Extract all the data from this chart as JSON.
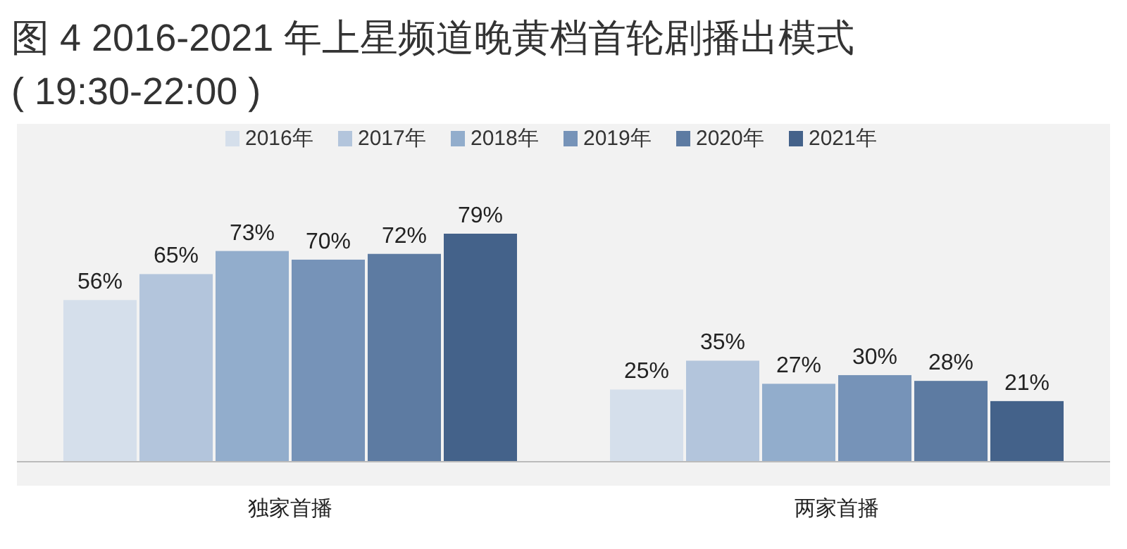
{
  "chart_data": {
    "type": "bar",
    "title": "图 4 2016-2021 年上星频道晚黄档首轮剧播出模式",
    "subtitle": "( 19:30-22:00 )",
    "categories": [
      "独家首播",
      "两家首播"
    ],
    "legend": "top",
    "series": [
      {
        "name": "2016年",
        "color": "#d5dfeb",
        "values": [
          56,
          25
        ],
        "value_labels": [
          "56%",
          "25%"
        ]
      },
      {
        "name": "2017年",
        "color": "#b3c5dc",
        "values": [
          65,
          35
        ],
        "value_labels": [
          "65%",
          "35%"
        ]
      },
      {
        "name": "2018年",
        "color": "#92adcc",
        "values": [
          73,
          27
        ],
        "value_labels": [
          "73%",
          "27%"
        ]
      },
      {
        "name": "2019年",
        "color": "#7693b8",
        "values": [
          70,
          30
        ],
        "value_labels": [
          "70%",
          "30%"
        ]
      },
      {
        "name": "2020年",
        "color": "#5d7ba2",
        "values": [
          72,
          28
        ],
        "value_labels": [
          "72%",
          "28%"
        ]
      },
      {
        "name": "2021年",
        "color": "#44628a",
        "values": [
          79,
          21
        ],
        "value_labels": [
          "79%",
          "21%"
        ]
      }
    ]
  }
}
